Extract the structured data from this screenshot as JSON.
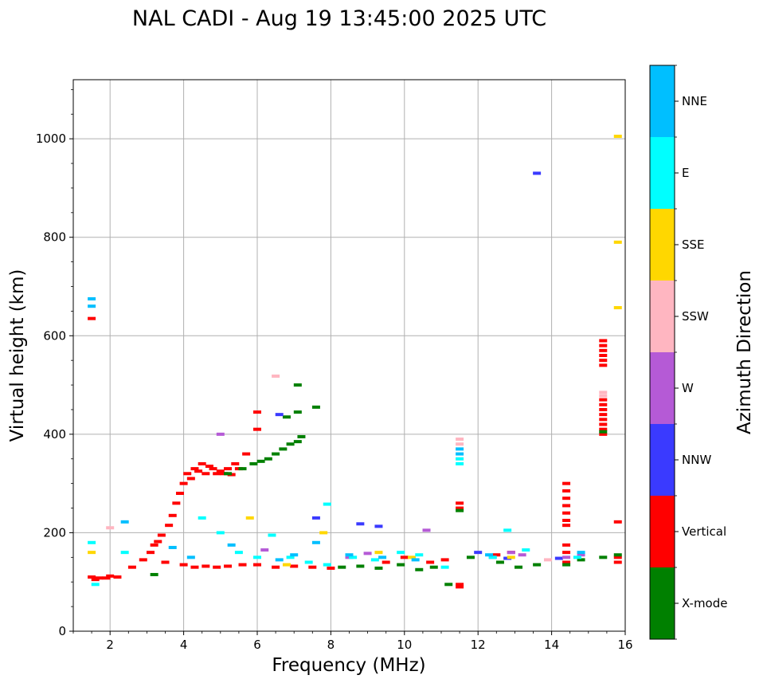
{
  "chart_data": {
    "type": "scatter",
    "title": "NAL CADI - Aug 19 13:45:00 2025 UTC",
    "xlabel": "Frequency (MHz)",
    "ylabel": "Virtual height (km)",
    "xlim": [
      1,
      16
    ],
    "ylim": [
      0,
      1120
    ],
    "xticks": [
      2,
      4,
      6,
      8,
      10,
      12,
      14,
      16
    ],
    "yticks": [
      0,
      200,
      400,
      600,
      800,
      1000
    ],
    "grid": true,
    "colorbar": {
      "label": "Azimuth Direction",
      "categories": [
        {
          "name": "X-mode",
          "color": "#008000"
        },
        {
          "name": "Vertical",
          "color": "#ff0000"
        },
        {
          "name": "NNW",
          "color": "#3a3aff"
        },
        {
          "name": "W",
          "color": "#b55ad6"
        },
        {
          "name": "SSW",
          "color": "#ffb6c1"
        },
        {
          "name": "SSE",
          "color": "#ffd700"
        },
        {
          "name": "E",
          "color": "#00ffff"
        },
        {
          "name": "NNE",
          "color": "#00bfff"
        }
      ]
    },
    "series": [
      {
        "name": "Vertical",
        "points": [
          [
            1.5,
            635
          ],
          [
            1.5,
            110
          ],
          [
            1.6,
            105
          ],
          [
            1.7,
            108
          ],
          [
            1.9,
            108
          ],
          [
            2.0,
            112
          ],
          [
            2.2,
            110
          ],
          [
            2.6,
            130
          ],
          [
            2.9,
            145
          ],
          [
            3.1,
            160
          ],
          [
            3.2,
            175
          ],
          [
            3.3,
            182
          ],
          [
            3.4,
            195
          ],
          [
            3.6,
            215
          ],
          [
            3.7,
            235
          ],
          [
            3.8,
            260
          ],
          [
            3.9,
            280
          ],
          [
            4.0,
            300
          ],
          [
            4.1,
            320
          ],
          [
            4.2,
            310
          ],
          [
            4.3,
            330
          ],
          [
            4.4,
            325
          ],
          [
            4.5,
            340
          ],
          [
            4.6,
            320
          ],
          [
            4.7,
            335
          ],
          [
            4.8,
            330
          ],
          [
            4.9,
            320
          ],
          [
            5.0,
            325
          ],
          [
            5.1,
            320
          ],
          [
            5.2,
            330
          ],
          [
            5.3,
            318
          ],
          [
            5.4,
            340
          ],
          [
            5.5,
            330
          ],
          [
            5.7,
            360
          ],
          [
            6.0,
            445
          ],
          [
            6.0,
            410
          ],
          [
            3.5,
            140
          ],
          [
            4.0,
            135
          ],
          [
            4.3,
            130
          ],
          [
            4.6,
            132
          ],
          [
            4.9,
            130
          ],
          [
            5.2,
            132
          ],
          [
            5.6,
            135
          ],
          [
            6.0,
            135
          ],
          [
            6.5,
            130
          ],
          [
            7.0,
            132
          ],
          [
            7.5,
            130
          ],
          [
            8.0,
            128
          ],
          [
            9.5,
            140
          ],
          [
            10.0,
            150
          ],
          [
            10.7,
            140
          ],
          [
            11.1,
            145
          ],
          [
            11.5,
            260
          ],
          [
            11.5,
            250
          ],
          [
            11.5,
            95
          ],
          [
            11.5,
            90
          ],
          [
            12.5,
            155
          ],
          [
            12.9,
            160
          ],
          [
            14.4,
            300
          ],
          [
            14.4,
            285
          ],
          [
            14.4,
            270
          ],
          [
            14.4,
            255
          ],
          [
            14.4,
            240
          ],
          [
            14.4,
            225
          ],
          [
            14.4,
            215
          ],
          [
            14.4,
            175
          ],
          [
            14.4,
            160
          ],
          [
            14.4,
            140
          ],
          [
            15.4,
            590
          ],
          [
            15.4,
            580
          ],
          [
            15.4,
            570
          ],
          [
            15.4,
            560
          ],
          [
            15.4,
            550
          ],
          [
            15.4,
            540
          ],
          [
            15.4,
            470
          ],
          [
            15.4,
            460
          ],
          [
            15.4,
            450
          ],
          [
            15.4,
            440
          ],
          [
            15.4,
            430
          ],
          [
            15.4,
            420
          ],
          [
            15.4,
            410
          ],
          [
            15.4,
            400
          ],
          [
            15.8,
            222
          ],
          [
            15.8,
            150
          ],
          [
            15.8,
            140
          ]
        ]
      },
      {
        "name": "X-mode",
        "points": [
          [
            3.2,
            115
          ],
          [
            5.2,
            320
          ],
          [
            5.6,
            330
          ],
          [
            5.9,
            340
          ],
          [
            6.1,
            345
          ],
          [
            6.3,
            350
          ],
          [
            6.5,
            360
          ],
          [
            6.7,
            370
          ],
          [
            6.9,
            380
          ],
          [
            7.1,
            385
          ],
          [
            7.2,
            395
          ],
          [
            6.8,
            435
          ],
          [
            7.1,
            445
          ],
          [
            7.6,
            455
          ],
          [
            7.1,
            500
          ],
          [
            8.3,
            130
          ],
          [
            8.8,
            132
          ],
          [
            9.3,
            128
          ],
          [
            9.9,
            135
          ],
          [
            10.4,
            125
          ],
          [
            10.8,
            130
          ],
          [
            11.2,
            95
          ],
          [
            11.5,
            245
          ],
          [
            11.8,
            150
          ],
          [
            12.6,
            140
          ],
          [
            13.1,
            130
          ],
          [
            13.6,
            135
          ],
          [
            14.4,
            135
          ],
          [
            14.8,
            145
          ],
          [
            15.4,
            150
          ],
          [
            15.8,
            155
          ],
          [
            15.4,
            405
          ]
        ]
      },
      {
        "name": "NNW",
        "points": [
          [
            6.6,
            440
          ],
          [
            7.6,
            230
          ],
          [
            8.8,
            218
          ],
          [
            9.3,
            213
          ],
          [
            12.0,
            160
          ],
          [
            12.8,
            148
          ],
          [
            13.6,
            930
          ],
          [
            14.2,
            148
          ]
        ]
      },
      {
        "name": "W",
        "points": [
          [
            5.0,
            400
          ],
          [
            6.2,
            165
          ],
          [
            8.5,
            150
          ],
          [
            9.0,
            158
          ],
          [
            10.6,
            205
          ],
          [
            12.4,
            150
          ],
          [
            12.9,
            160
          ],
          [
            13.2,
            155
          ],
          [
            14.4,
            150
          ],
          [
            14.8,
            155
          ]
        ]
      },
      {
        "name": "SSW",
        "points": [
          [
            2.0,
            210
          ],
          [
            6.5,
            518
          ],
          [
            11.5,
            390
          ],
          [
            11.5,
            380
          ],
          [
            13.9,
            145
          ],
          [
            15.4,
            485
          ],
          [
            15.4,
            478
          ]
        ]
      },
      {
        "name": "SSE",
        "points": [
          [
            1.5,
            160
          ],
          [
            5.8,
            230
          ],
          [
            6.8,
            135
          ],
          [
            7.8,
            200
          ],
          [
            9.3,
            160
          ],
          [
            10.2,
            150
          ],
          [
            12.9,
            150
          ],
          [
            15.8,
            1005
          ],
          [
            15.8,
            790
          ],
          [
            15.8,
            657
          ]
        ]
      },
      {
        "name": "E",
        "points": [
          [
            1.5,
            180
          ],
          [
            1.6,
            95
          ],
          [
            2.4,
            160
          ],
          [
            4.5,
            230
          ],
          [
            5.0,
            200
          ],
          [
            5.5,
            160
          ],
          [
            6.0,
            150
          ],
          [
            6.4,
            195
          ],
          [
            6.9,
            150
          ],
          [
            7.4,
            140
          ],
          [
            7.9,
            135
          ],
          [
            7.9,
            258
          ],
          [
            8.6,
            150
          ],
          [
            9.2,
            145
          ],
          [
            9.9,
            160
          ],
          [
            10.4,
            155
          ],
          [
            11.1,
            130
          ],
          [
            11.5,
            350
          ],
          [
            11.5,
            340
          ],
          [
            12.4,
            150
          ],
          [
            12.8,
            205
          ],
          [
            13.3,
            165
          ],
          [
            14.7,
            150
          ]
        ]
      },
      {
        "name": "NNE",
        "points": [
          [
            1.5,
            675
          ],
          [
            1.5,
            660
          ],
          [
            2.4,
            222
          ],
          [
            3.7,
            170
          ],
          [
            4.2,
            150
          ],
          [
            5.3,
            175
          ],
          [
            6.6,
            145
          ],
          [
            7.0,
            155
          ],
          [
            7.6,
            180
          ],
          [
            8.5,
            155
          ],
          [
            9.4,
            150
          ],
          [
            10.3,
            145
          ],
          [
            11.5,
            370
          ],
          [
            11.5,
            360
          ],
          [
            12.3,
            155
          ],
          [
            14.8,
            160
          ]
        ]
      }
    ]
  }
}
